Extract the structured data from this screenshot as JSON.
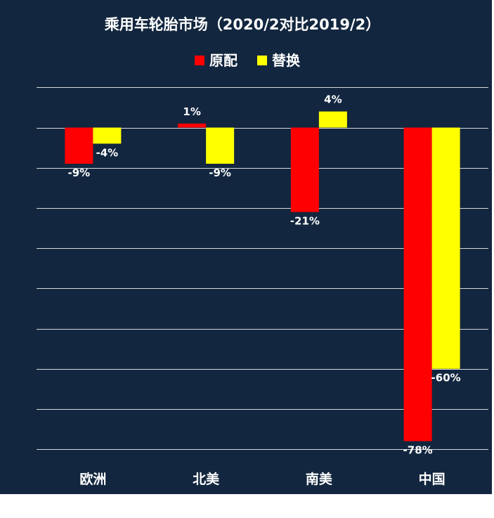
{
  "chart_data": {
    "type": "bar",
    "title": "乘用车轮胎市场（2020/2对比2019/2）",
    "categories": [
      "欧洲",
      "北美",
      "南美",
      "中国"
    ],
    "series": [
      {
        "name": "原配",
        "color": "#ff0000",
        "values": [
          -9,
          1,
          -21,
          -78
        ],
        "labels": [
          "-9%",
          "1%",
          "-21%",
          "-78%"
        ]
      },
      {
        "name": "替换",
        "color": "#ffff00",
        "values": [
          -4,
          -9,
          4,
          -60
        ],
        "labels": [
          "-4%",
          "-9%",
          "4%",
          "-60%"
        ]
      }
    ],
    "ylim": [
      -80,
      10
    ],
    "y_grid_step": 10,
    "grid": true,
    "legend_position": "top-center",
    "background_color": "#12263f"
  }
}
